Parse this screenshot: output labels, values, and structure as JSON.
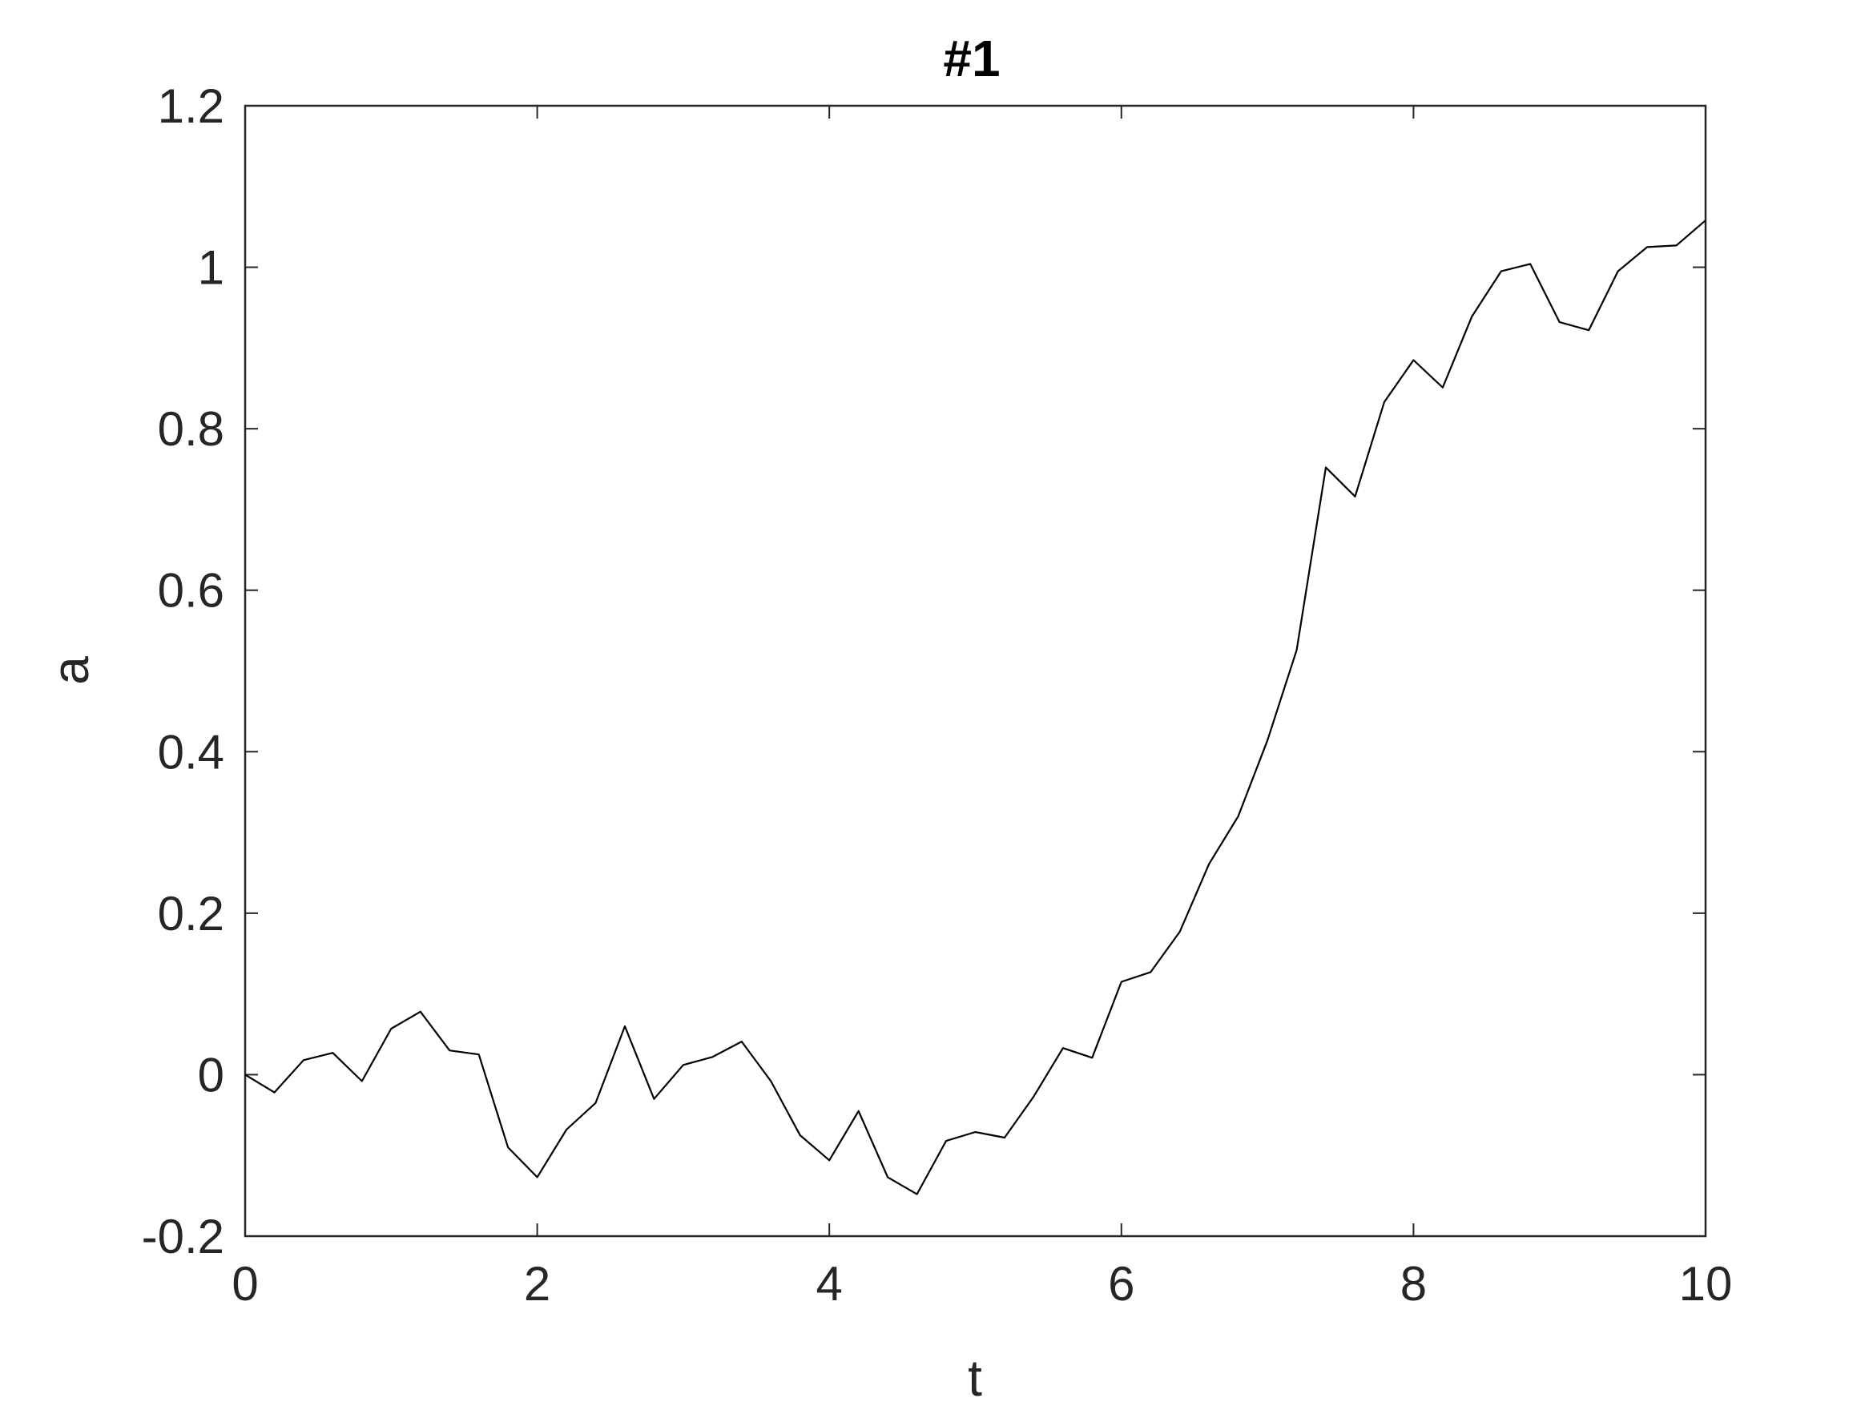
{
  "chart_data": {
    "type": "line",
    "title": "#1",
    "xlabel": "t",
    "ylabel": "a",
    "xlim": [
      0,
      10
    ],
    "ylim": [
      -0.2,
      1.2
    ],
    "grid": false,
    "xticks": [
      0,
      2,
      4,
      6,
      8,
      10
    ],
    "xtick_labels": [
      "0",
      "2",
      "4",
      "6",
      "8",
      "10"
    ],
    "yticks": [
      -0.2,
      0,
      0.2,
      0.4,
      0.6,
      0.8,
      1,
      1.2
    ],
    "ytick_labels": [
      "-0.2",
      "0",
      "0.2",
      "0.4",
      "0.6",
      "0.8",
      "1",
      "1.2"
    ],
    "series": [
      {
        "color": "#000000",
        "x": [
          0,
          0.2,
          0.4,
          0.6,
          0.8,
          1.0,
          1.2,
          1.4,
          1.6,
          1.8,
          2.0,
          2.2,
          2.4,
          2.6,
          2.8,
          3.0,
          3.2,
          3.4,
          3.6,
          3.8,
          4.0,
          4.2,
          4.4,
          4.6,
          4.8,
          5.0,
          5.2,
          5.4,
          5.6,
          5.8,
          6.0,
          6.2,
          6.4,
          6.6,
          6.8,
          7.0,
          7.2,
          7.4,
          7.6,
          7.8,
          8.0,
          8.2,
          8.4,
          8.6,
          8.8,
          9.0,
          9.2,
          9.4,
          9.6,
          9.8,
          10.0
        ],
        "y": [
          0.0,
          -0.022,
          0.018,
          0.027,
          -0.008,
          0.057,
          0.078,
          0.03,
          0.025,
          -0.09,
          -0.127,
          -0.068,
          -0.035,
          0.06,
          -0.03,
          0.012,
          0.022,
          0.041,
          -0.008,
          -0.075,
          -0.106,
          -0.045,
          -0.127,
          -0.148,
          -0.082,
          -0.071,
          -0.078,
          -0.027,
          0.033,
          0.021,
          0.115,
          0.127,
          0.177,
          0.261,
          0.32,
          0.414,
          0.526,
          0.752,
          0.716,
          0.833,
          0.885,
          0.851,
          0.939,
          0.995,
          1.004,
          0.932,
          0.922,
          0.995,
          1.025,
          1.027,
          1.058
        ]
      }
    ]
  }
}
